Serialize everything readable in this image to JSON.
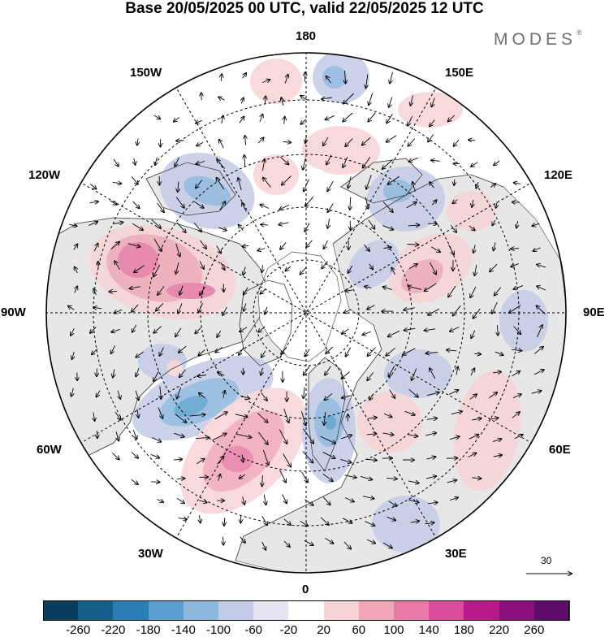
{
  "title": "Base 20/05/2025 00 UTC, valid 22/05/2025 12 UTC",
  "brand": "MODES",
  "brand_mark": "®",
  "longitude_labels": {
    "lon_180": "180",
    "lon_150e": "150E",
    "lon_120e": "120E",
    "lon_90e": "90E",
    "lon_60e": "60E",
    "lon_30e": "30E",
    "lon_0": "0",
    "lon_30w": "30W",
    "lon_60w": "60W",
    "lon_90w": "90W",
    "lon_120w": "120W",
    "lon_150w": "150W"
  },
  "vector_scale_label": "30",
  "colorbar": {
    "ticks": [
      "-260",
      "-220",
      "-180",
      "-140",
      "-100",
      "-60",
      "-20",
      "20",
      "60",
      "100",
      "140",
      "180",
      "220",
      "260"
    ],
    "colors": [
      "#0b3d5c",
      "#155e8a",
      "#2a7db5",
      "#5a9fcf",
      "#8eb7de",
      "#c3cbe6",
      "#e6e4f1",
      "#ffffff",
      "#f7d3d6",
      "#f0a8b8",
      "#e97aa7",
      "#dc4b9b",
      "#b81a8a",
      "#8c0f7e",
      "#5e0b6b"
    ]
  },
  "colors": {
    "land": "#e7e7e7",
    "coast": "#444444",
    "grid": "#000000"
  }
}
